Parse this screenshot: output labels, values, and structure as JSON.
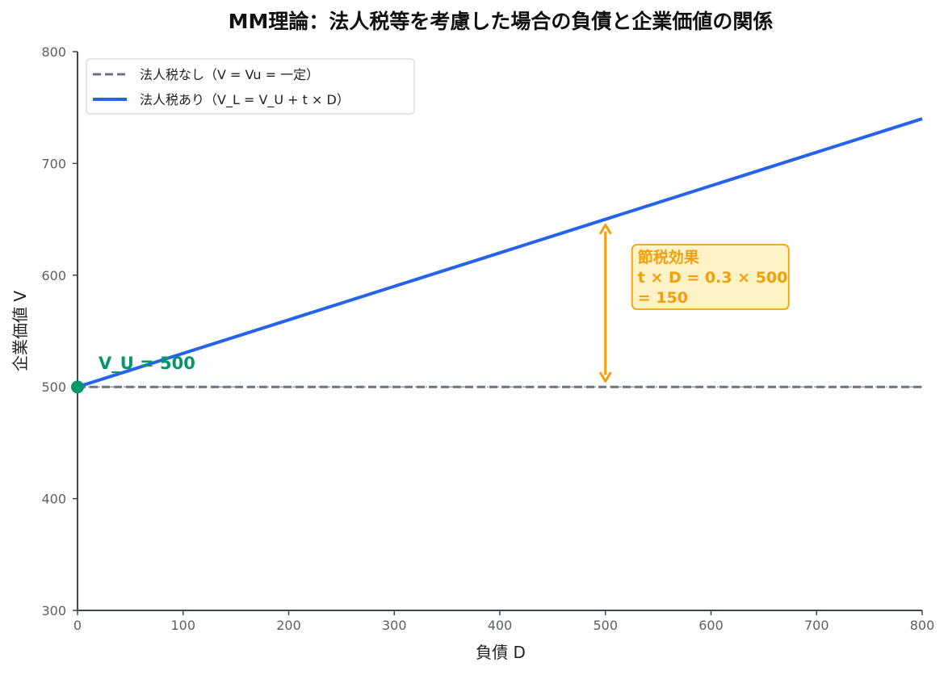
{
  "chart_data": {
    "type": "line",
    "title": "MM理論：法人税等を考慮した場合の負債と企業価値の関係",
    "xlabel": "負債 D",
    "ylabel": "企業価値 V",
    "xlim": [
      0,
      800
    ],
    "ylim": [
      300,
      800
    ],
    "x_ticks": [
      "0",
      "100",
      "200",
      "300",
      "400",
      "500",
      "600",
      "700",
      "800"
    ],
    "y_ticks": [
      "300",
      "400",
      "500",
      "600",
      "700",
      "800"
    ],
    "grid": false,
    "legend_position": "top-left",
    "series": [
      {
        "name": "法人税なし（V = Vu = 一定）",
        "x": [
          0,
          800
        ],
        "y": [
          500,
          500
        ],
        "color": "#6b7280",
        "style": "dashed"
      },
      {
        "name": "法人税あり（V_L = V_U + t × D）",
        "x": [
          0,
          800
        ],
        "y": [
          500,
          740
        ],
        "color": "#2563eb",
        "style": "solid"
      }
    ],
    "reference_line": {
      "y": 500,
      "color": "#9ca3af",
      "style": "dash-dot"
    },
    "point": {
      "x": 0,
      "y": 500,
      "label": "V_U = 500",
      "color": "#059669"
    },
    "annotation": {
      "x": 500,
      "y_from": 500,
      "y_to": 650,
      "lines": [
        "節税効果",
        "t × D = 0.3 × 500",
        "= 150"
      ],
      "color": "#f59e0b",
      "box_fill": "#fef3c7"
    }
  }
}
